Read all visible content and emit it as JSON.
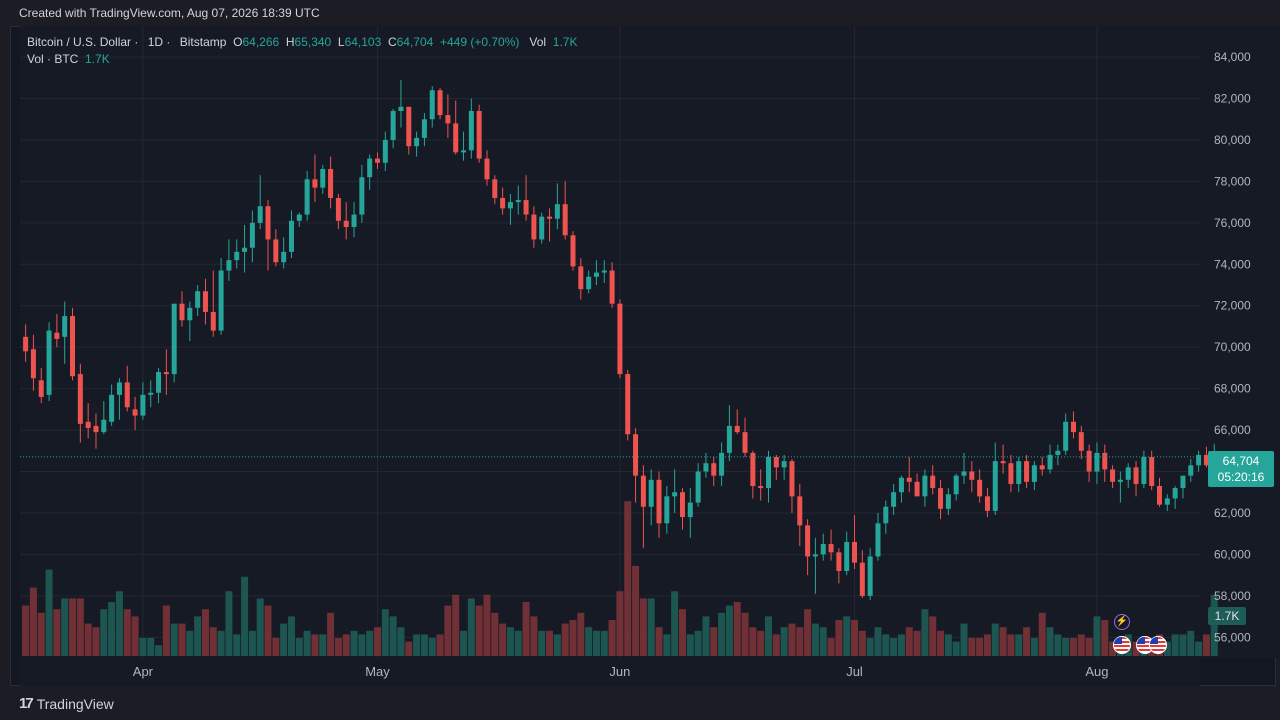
{
  "header": {
    "created_text": "Created with TradingView.com, Aug 07, 2026 18:39 UTC"
  },
  "legend": {
    "symbol": "Bitcoin / U.S. Dollar",
    "interval": "1D",
    "exchange": "Bitstamp",
    "o_label": "O",
    "o_value": "64,266",
    "h_label": "H",
    "h_value": "65,340",
    "l_label": "L",
    "l_value": "64,103",
    "c_label": "C",
    "c_value": "64,704",
    "change": "+449 (+0.70%)",
    "vol_label": "Vol",
    "vol_value": "1.7K",
    "vol2_label": "Vol · BTC",
    "vol2_value": "1.7K"
  },
  "last_price": {
    "price": "64,704",
    "countdown": "05:20:16",
    "volume": "1.7K"
  },
  "footer": {
    "brand": "TradingView",
    "brand_mark": "17"
  },
  "colors": {
    "up": "#26a69a",
    "down": "#ef5350",
    "background": "#161a25",
    "grid": "#242733"
  },
  "events": [
    {
      "icon": "lightning-icon"
    },
    {
      "icon": "us-flag-icon"
    },
    {
      "icon": "us-flag-icon"
    },
    {
      "icon": "us-flag-icon"
    }
  ],
  "chart_data": {
    "type": "candlestick",
    "title": "Bitcoin / U.S. Dollar · 1D · Bitstamp",
    "ylim": [
      55000,
      85500
    ],
    "y_ticks": [
      56000,
      58000,
      60000,
      62000,
      64000,
      66000,
      68000,
      70000,
      72000,
      74000,
      76000,
      78000,
      80000,
      82000,
      84000
    ],
    "y_tick_labels": [
      "56,000",
      "58,000",
      "60,000",
      "62,000",
      "64,000",
      "66,000",
      "68,000",
      "70,000",
      "72,000",
      "74,000",
      "76,000",
      "78,000",
      "80,000",
      "82,000",
      "84,000"
    ],
    "x_tick_labels": [
      {
        "label": "Apr",
        "index": 15
      },
      {
        "label": "May",
        "index": 45
      },
      {
        "label": "Jun",
        "index": 76
      },
      {
        "label": "Jul",
        "index": 106
      },
      {
        "label": "Aug",
        "index": 137
      }
    ],
    "ohlc_order": [
      "open",
      "high",
      "low",
      "close",
      "volume"
    ],
    "candles": [
      [
        70500,
        71100,
        69300,
        69800,
        1.4
      ],
      [
        69900,
        70600,
        67900,
        68500,
        1.9
      ],
      [
        68400,
        69000,
        67300,
        67600,
        1.2
      ],
      [
        67700,
        71200,
        67400,
        70800,
        2.4
      ],
      [
        70700,
        71600,
        70000,
        70400,
        1.3
      ],
      [
        70500,
        72200,
        69200,
        71500,
        1.6
      ],
      [
        71500,
        71900,
        68400,
        68600,
        1.6
      ],
      [
        68700,
        69200,
        65400,
        66300,
        1.6
      ],
      [
        66400,
        67300,
        65600,
        66100,
        0.9
      ],
      [
        66200,
        66800,
        65100,
        65900,
        0.8
      ],
      [
        65900,
        67400,
        65800,
        66500,
        1.3
      ],
      [
        66400,
        68200,
        66200,
        67700,
        1.5
      ],
      [
        67700,
        68500,
        66500,
        68300,
        1.8
      ],
      [
        68300,
        69100,
        66900,
        67100,
        1.3
      ],
      [
        67000,
        67600,
        66000,
        66700,
        1.1
      ],
      [
        66700,
        68300,
        66500,
        67700,
        0.5
      ],
      [
        67700,
        68400,
        67100,
        67800,
        0.5
      ],
      [
        67800,
        69000,
        67300,
        68800,
        0.3
      ],
      [
        68800,
        69900,
        67700,
        68700,
        1.4
      ],
      [
        68700,
        71900,
        68300,
        72100,
        0.9
      ],
      [
        72100,
        72700,
        71000,
        71300,
        0.9
      ],
      [
        71300,
        72200,
        70300,
        71900,
        0.7
      ],
      [
        71900,
        73000,
        71500,
        72700,
        1.1
      ],
      [
        72700,
        73300,
        71100,
        71700,
        1.3
      ],
      [
        71700,
        73700,
        70500,
        70800,
        0.8
      ],
      [
        70800,
        74300,
        70600,
        73700,
        0.7
      ],
      [
        73700,
        75200,
        73200,
        74200,
        1.8
      ],
      [
        74200,
        75200,
        73800,
        74600,
        0.6
      ],
      [
        74600,
        75900,
        73600,
        74800,
        2.2
      ],
      [
        74800,
        76600,
        74100,
        76000,
        0.7
      ],
      [
        76000,
        78300,
        75700,
        76800,
        1.6
      ],
      [
        76800,
        77100,
        73700,
        75200,
        1.4
      ],
      [
        75200,
        75700,
        73900,
        74100,
        0.5
      ],
      [
        74100,
        75300,
        73800,
        74600,
        0.9
      ],
      [
        74600,
        76600,
        74300,
        76100,
        1.1
      ],
      [
        76100,
        76500,
        75800,
        76400,
        0.5
      ],
      [
        76400,
        78500,
        76100,
        78100,
        0.7
      ],
      [
        78100,
        79300,
        77000,
        77700,
        0.6
      ],
      [
        77700,
        78800,
        77400,
        78600,
        0.6
      ],
      [
        78600,
        79200,
        76700,
        77200,
        1.2
      ],
      [
        77200,
        77400,
        75700,
        76100,
        0.5
      ],
      [
        76100,
        77000,
        75200,
        75800,
        0.6
      ],
      [
        75800,
        77000,
        75300,
        76400,
        0.7
      ],
      [
        76400,
        78800,
        76000,
        78200,
        0.6
      ],
      [
        78200,
        79300,
        77600,
        79100,
        0.7
      ],
      [
        79100,
        79400,
        78600,
        78900,
        0.8
      ],
      [
        78900,
        80400,
        78500,
        80000,
        1.3
      ],
      [
        80000,
        81500,
        79600,
        81400,
        1.1
      ],
      [
        81400,
        82900,
        80600,
        81600,
        0.8
      ],
      [
        81600,
        81600,
        79300,
        79700,
        0.4
      ],
      [
        79700,
        80400,
        79200,
        80100,
        0.6
      ],
      [
        80100,
        81300,
        79700,
        81000,
        0.6
      ],
      [
        81000,
        82600,
        80600,
        82400,
        0.5
      ],
      [
        82400,
        82500,
        81000,
        81200,
        0.6
      ],
      [
        81200,
        82200,
        80100,
        80800,
        1.4
      ],
      [
        80800,
        81900,
        79300,
        79400,
        1.7
      ],
      [
        79400,
        80400,
        79000,
        79500,
        0.7
      ],
      [
        79500,
        82000,
        79100,
        81400,
        1.6
      ],
      [
        81400,
        81700,
        78900,
        79100,
        1.4
      ],
      [
        79100,
        79500,
        77800,
        78100,
        1.7
      ],
      [
        78100,
        78300,
        76900,
        77200,
        1.2
      ],
      [
        77200,
        77700,
        76400,
        76700,
        0.9
      ],
      [
        76700,
        77400,
        75900,
        77000,
        0.8
      ],
      [
        77000,
        77800,
        76400,
        77100,
        0.7
      ],
      [
        77100,
        78300,
        76100,
        76400,
        1.5
      ],
      [
        76400,
        76800,
        74800,
        75200,
        1.1
      ],
      [
        75200,
        76500,
        75000,
        76300,
        0.7
      ],
      [
        76300,
        76700,
        75100,
        76200,
        0.7
      ],
      [
        76200,
        77900,
        75700,
        76900,
        0.6
      ],
      [
        76900,
        78000,
        75200,
        75400,
        0.9
      ],
      [
        75400,
        75600,
        73700,
        73900,
        1.0
      ],
      [
        73900,
        74300,
        72300,
        72800,
        1.2
      ],
      [
        72800,
        73700,
        72600,
        73400,
        0.8
      ],
      [
        73400,
        74200,
        73000,
        73600,
        0.7
      ],
      [
        73600,
        74200,
        73100,
        73700,
        0.7
      ],
      [
        73700,
        74100,
        71900,
        72100,
        1.0
      ],
      [
        72100,
        72300,
        68500,
        68700,
        1.8
      ],
      [
        68700,
        68900,
        65500,
        65800,
        4.3
      ],
      [
        65800,
        66100,
        62500,
        63800,
        2.5
      ],
      [
        63800,
        64300,
        60300,
        62300,
        1.6
      ],
      [
        62300,
        64100,
        61400,
        63600,
        1.6
      ],
      [
        63600,
        64000,
        60800,
        61500,
        0.8
      ],
      [
        61500,
        63300,
        61000,
        62800,
        0.6
      ],
      [
        62800,
        64100,
        62000,
        63000,
        1.8
      ],
      [
        63000,
        63200,
        61200,
        61800,
        1.3
      ],
      [
        61800,
        63200,
        60800,
        62500,
        0.6
      ],
      [
        62500,
        64400,
        62300,
        64000,
        0.7
      ],
      [
        64000,
        64900,
        63700,
        64400,
        1.1
      ],
      [
        64400,
        64700,
        63300,
        63800,
        0.8
      ],
      [
        63800,
        65400,
        63300,
        64900,
        1.2
      ],
      [
        64900,
        67200,
        64500,
        66200,
        1.4
      ],
      [
        66200,
        67000,
        65800,
        65900,
        1.5
      ],
      [
        65900,
        66600,
        64700,
        64900,
        1.2
      ],
      [
        64900,
        65000,
        62700,
        63300,
        0.8
      ],
      [
        63300,
        64100,
        62600,
        63200,
        0.7
      ],
      [
        63200,
        65000,
        62500,
        64700,
        1.1
      ],
      [
        64700,
        64800,
        63600,
        64200,
        0.6
      ],
      [
        64200,
        64800,
        63600,
        64500,
        0.8
      ],
      [
        64500,
        64600,
        62000,
        62800,
        0.9
      ],
      [
        62800,
        63400,
        60400,
        61400,
        0.8
      ],
      [
        61400,
        61700,
        59000,
        59900,
        1.3
      ],
      [
        59900,
        60800,
        58100,
        60000,
        0.9
      ],
      [
        60000,
        61000,
        59700,
        60500,
        0.8
      ],
      [
        60500,
        61200,
        59700,
        60100,
        0.5
      ],
      [
        60100,
        60300,
        58600,
        59200,
        1.0
      ],
      [
        59200,
        61100,
        59000,
        60600,
        1.1
      ],
      [
        60600,
        61900,
        59300,
        59600,
        1.0
      ],
      [
        59600,
        60200,
        57900,
        58000,
        0.7
      ],
      [
        58000,
        60300,
        57800,
        59900,
        0.5
      ],
      [
        59900,
        62000,
        59700,
        61500,
        0.8
      ],
      [
        61500,
        62600,
        61000,
        62300,
        0.6
      ],
      [
        62300,
        63400,
        61900,
        63000,
        0.5
      ],
      [
        63000,
        63800,
        62500,
        63700,
        0.6
      ],
      [
        63700,
        64700,
        63000,
        63500,
        0.8
      ],
      [
        63500,
        63900,
        62800,
        62800,
        0.7
      ],
      [
        62800,
        64100,
        62300,
        63800,
        1.3
      ],
      [
        63800,
        64300,
        62900,
        63200,
        1.1
      ],
      [
        63200,
        63600,
        61700,
        62200,
        0.7
      ],
      [
        62200,
        63200,
        61900,
        62900,
        0.6
      ],
      [
        62900,
        63900,
        62600,
        63800,
        0.4
      ],
      [
        63800,
        64900,
        63400,
        64000,
        0.9
      ],
      [
        64000,
        64500,
        63000,
        63600,
        0.5
      ],
      [
        63600,
        64100,
        62500,
        62800,
        0.5
      ],
      [
        62800,
        63200,
        61800,
        62100,
        0.6
      ],
      [
        62100,
        65400,
        61900,
        64500,
        0.9
      ],
      [
        64500,
        65300,
        63900,
        64400,
        0.8
      ],
      [
        64400,
        64800,
        63000,
        63400,
        0.6
      ],
      [
        63400,
        64700,
        63000,
        64500,
        0.6
      ],
      [
        64500,
        64800,
        63200,
        63500,
        0.8
      ],
      [
        63500,
        64500,
        63100,
        64300,
        0.5
      ],
      [
        64300,
        64700,
        63800,
        64100,
        1.2
      ],
      [
        64100,
        65300,
        63900,
        64800,
        0.8
      ],
      [
        64800,
        65300,
        64300,
        65000,
        0.6
      ],
      [
        65000,
        66800,
        64800,
        66400,
        0.5
      ],
      [
        66400,
        66900,
        65600,
        65900,
        0.5
      ],
      [
        65900,
        66200,
        64600,
        65000,
        0.6
      ],
      [
        65000,
        65300,
        63500,
        64000,
        0.5
      ],
      [
        64000,
        65400,
        63400,
        64900,
        1.1
      ],
      [
        64900,
        65300,
        63500,
        64100,
        1.0
      ],
      [
        64100,
        64300,
        63200,
        63500,
        0.4
      ],
      [
        63500,
        64000,
        62500,
        63600,
        0.5
      ],
      [
        63600,
        64400,
        63200,
        64200,
        0.6
      ],
      [
        64200,
        64500,
        62800,
        63400,
        0.4
      ],
      [
        63400,
        65000,
        63200,
        64700,
        0.3
      ],
      [
        64700,
        65000,
        63100,
        63300,
        0.5
      ],
      [
        63300,
        63700,
        62300,
        62400,
        0.6
      ],
      [
        62400,
        62900,
        62100,
        62700,
        0.4
      ],
      [
        62700,
        63300,
        62200,
        63200,
        0.6
      ],
      [
        63200,
        63800,
        62700,
        63800,
        0.6
      ],
      [
        63800,
        64600,
        63500,
        64300,
        0.7
      ],
      [
        64300,
        65000,
        64000,
        64800,
        0.4
      ],
      [
        64800,
        65200,
        64200,
        64300,
        0.6
      ],
      [
        64266,
        65340,
        64103,
        64704,
        1.7
      ]
    ]
  }
}
